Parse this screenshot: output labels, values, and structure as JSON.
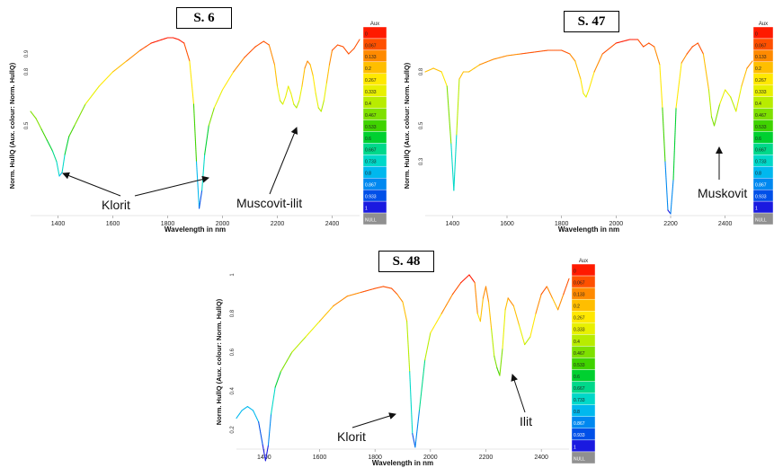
{
  "chart_data": [
    {
      "type": "line",
      "title": "S. 6",
      "xlabel": "Wavelength in nm",
      "ylabel": "Norm. HullQ (Aux. colour: Norm. HullQ)",
      "xlim": [
        1300,
        2500
      ],
      "x_ticks": [
        "1400",
        "1600",
        "1800",
        "2000",
        "2200",
        "2400"
      ],
      "y_ticks": [
        "0.5",
        "0.8",
        "0.9"
      ],
      "series": [
        {
          "x": [
            1300,
            1320,
            1340,
            1360,
            1380,
            1395,
            1405,
            1415,
            1425,
            1440,
            1460,
            1500,
            1550,
            1600,
            1650,
            1700,
            1740,
            1780,
            1800,
            1820,
            1840,
            1860,
            1880,
            1895,
            1905,
            1915,
            1925,
            1935,
            1950,
            1970,
            2000,
            2040,
            2080,
            2120,
            2150,
            2170,
            2190,
            2200,
            2210,
            2220,
            2230,
            2240,
            2250,
            2260,
            2270,
            2280,
            2290,
            2300,
            2310,
            2320,
            2330,
            2340,
            2350,
            2360,
            2370,
            2380,
            2390,
            2400,
            2420,
            2440,
            2460,
            2480,
            2500
          ],
          "y": [
            0.58,
            0.54,
            0.48,
            0.42,
            0.36,
            0.3,
            0.22,
            0.24,
            0.34,
            0.44,
            0.5,
            0.62,
            0.72,
            0.8,
            0.86,
            0.92,
            0.96,
            0.98,
            0.99,
            0.99,
            0.98,
            0.96,
            0.86,
            0.62,
            0.3,
            0.04,
            0.14,
            0.34,
            0.5,
            0.6,
            0.7,
            0.8,
            0.88,
            0.94,
            0.97,
            0.95,
            0.84,
            0.72,
            0.64,
            0.62,
            0.66,
            0.72,
            0.68,
            0.62,
            0.6,
            0.64,
            0.72,
            0.82,
            0.86,
            0.84,
            0.78,
            0.68,
            0.6,
            0.58,
            0.64,
            0.74,
            0.84,
            0.92,
            0.95,
            0.94,
            0.9,
            0.93,
            0.98
          ]
        }
      ],
      "annotations": [
        "Klorit",
        "Muscovit-ilit"
      ]
    },
    {
      "type": "line",
      "title": "S. 47",
      "xlabel": "Wavelength in nm",
      "ylabel": "Norm. HullQ (Aux. colour: Norm. HullQ)",
      "xlim": [
        1300,
        2500
      ],
      "x_ticks": [
        "1400",
        "1600",
        "1800",
        "2000",
        "2200",
        "2400"
      ],
      "y_ticks": [
        "0.3",
        "0.5",
        "0.8"
      ],
      "series": [
        {
          "x": [
            1300,
            1330,
            1360,
            1380,
            1395,
            1405,
            1415,
            1425,
            1440,
            1460,
            1500,
            1550,
            1600,
            1650,
            1700,
            1750,
            1800,
            1830,
            1850,
            1870,
            1880,
            1890,
            1900,
            1920,
            1950,
            2000,
            2050,
            2080,
            2100,
            2120,
            2140,
            2160,
            2170,
            2180,
            2190,
            2200,
            2210,
            2220,
            2240,
            2260,
            2280,
            2300,
            2320,
            2340,
            2350,
            2360,
            2380,
            2400,
            2420,
            2440,
            2460,
            2480,
            2500
          ],
          "y": [
            0.8,
            0.82,
            0.8,
            0.72,
            0.4,
            0.14,
            0.45,
            0.76,
            0.8,
            0.8,
            0.84,
            0.87,
            0.89,
            0.9,
            0.91,
            0.92,
            0.92,
            0.9,
            0.86,
            0.76,
            0.68,
            0.66,
            0.7,
            0.8,
            0.9,
            0.96,
            0.98,
            0.98,
            0.94,
            0.96,
            0.94,
            0.84,
            0.6,
            0.3,
            0.03,
            0.01,
            0.2,
            0.6,
            0.85,
            0.9,
            0.94,
            0.96,
            0.9,
            0.7,
            0.55,
            0.5,
            0.62,
            0.7,
            0.66,
            0.58,
            0.72,
            0.82,
            0.86
          ]
        }
      ],
      "annotations": [
        "Muskovit"
      ]
    },
    {
      "type": "line",
      "title": "S. 48",
      "xlabel": "Wavelength in nm",
      "ylabel": "Norm. HullQ (Aux. colour: Norm. HullQ)",
      "xlim": [
        1300,
        2500
      ],
      "x_ticks": [
        "1400",
        "1600",
        "1800",
        "2000",
        "2200",
        "2400"
      ],
      "y_ticks": [
        "0.2",
        "0.4",
        "0.6",
        "0.8",
        "1"
      ],
      "series": [
        {
          "x": [
            1300,
            1320,
            1340,
            1360,
            1380,
            1395,
            1405,
            1415,
            1425,
            1440,
            1460,
            1500,
            1550,
            1600,
            1650,
            1700,
            1750,
            1800,
            1830,
            1860,
            1880,
            1900,
            1915,
            1925,
            1935,
            1945,
            1960,
            1980,
            2000,
            2040,
            2080,
            2110,
            2140,
            2160,
            2170,
            2180,
            2190,
            2200,
            2210,
            2220,
            2230,
            2240,
            2250,
            2260,
            2270,
            2280,
            2300,
            2320,
            2340,
            2360,
            2380,
            2400,
            2420,
            2440,
            2460,
            2480,
            2500
          ],
          "y": [
            0.26,
            0.3,
            0.32,
            0.3,
            0.24,
            0.12,
            0.04,
            0.12,
            0.28,
            0.42,
            0.5,
            0.6,
            0.68,
            0.76,
            0.84,
            0.89,
            0.91,
            0.93,
            0.94,
            0.93,
            0.9,
            0.86,
            0.76,
            0.5,
            0.18,
            0.11,
            0.3,
            0.56,
            0.7,
            0.8,
            0.9,
            0.96,
            1.0,
            0.96,
            0.8,
            0.76,
            0.88,
            0.94,
            0.86,
            0.72,
            0.58,
            0.52,
            0.48,
            0.62,
            0.82,
            0.88,
            0.84,
            0.74,
            0.64,
            0.68,
            0.8,
            0.9,
            0.94,
            0.88,
            0.82,
            0.9,
            0.98
          ]
        }
      ],
      "annotations": [
        "Klorit",
        "Ilit"
      ]
    }
  ],
  "colorbar": {
    "title": "Aux",
    "labels": [
      "0",
      "0.067",
      "0.133",
      "0.2",
      "0.267",
      "0.333",
      "0.4",
      "0.467",
      "0.533",
      "0.6",
      "0.667",
      "0.733",
      "0.8",
      "0.867",
      "0.933",
      "1",
      "NULL"
    ],
    "colors": [
      "#ff1a00",
      "#ff5000",
      "#ff8a00",
      "#ffbe00",
      "#ffe800",
      "#e8f000",
      "#b8ec00",
      "#7ee000",
      "#3fd300",
      "#00d030",
      "#00d88a",
      "#00d8c8",
      "#00b8ee",
      "#0088f0",
      "#0050e8",
      "#1a1ae0",
      "#909090"
    ]
  }
}
